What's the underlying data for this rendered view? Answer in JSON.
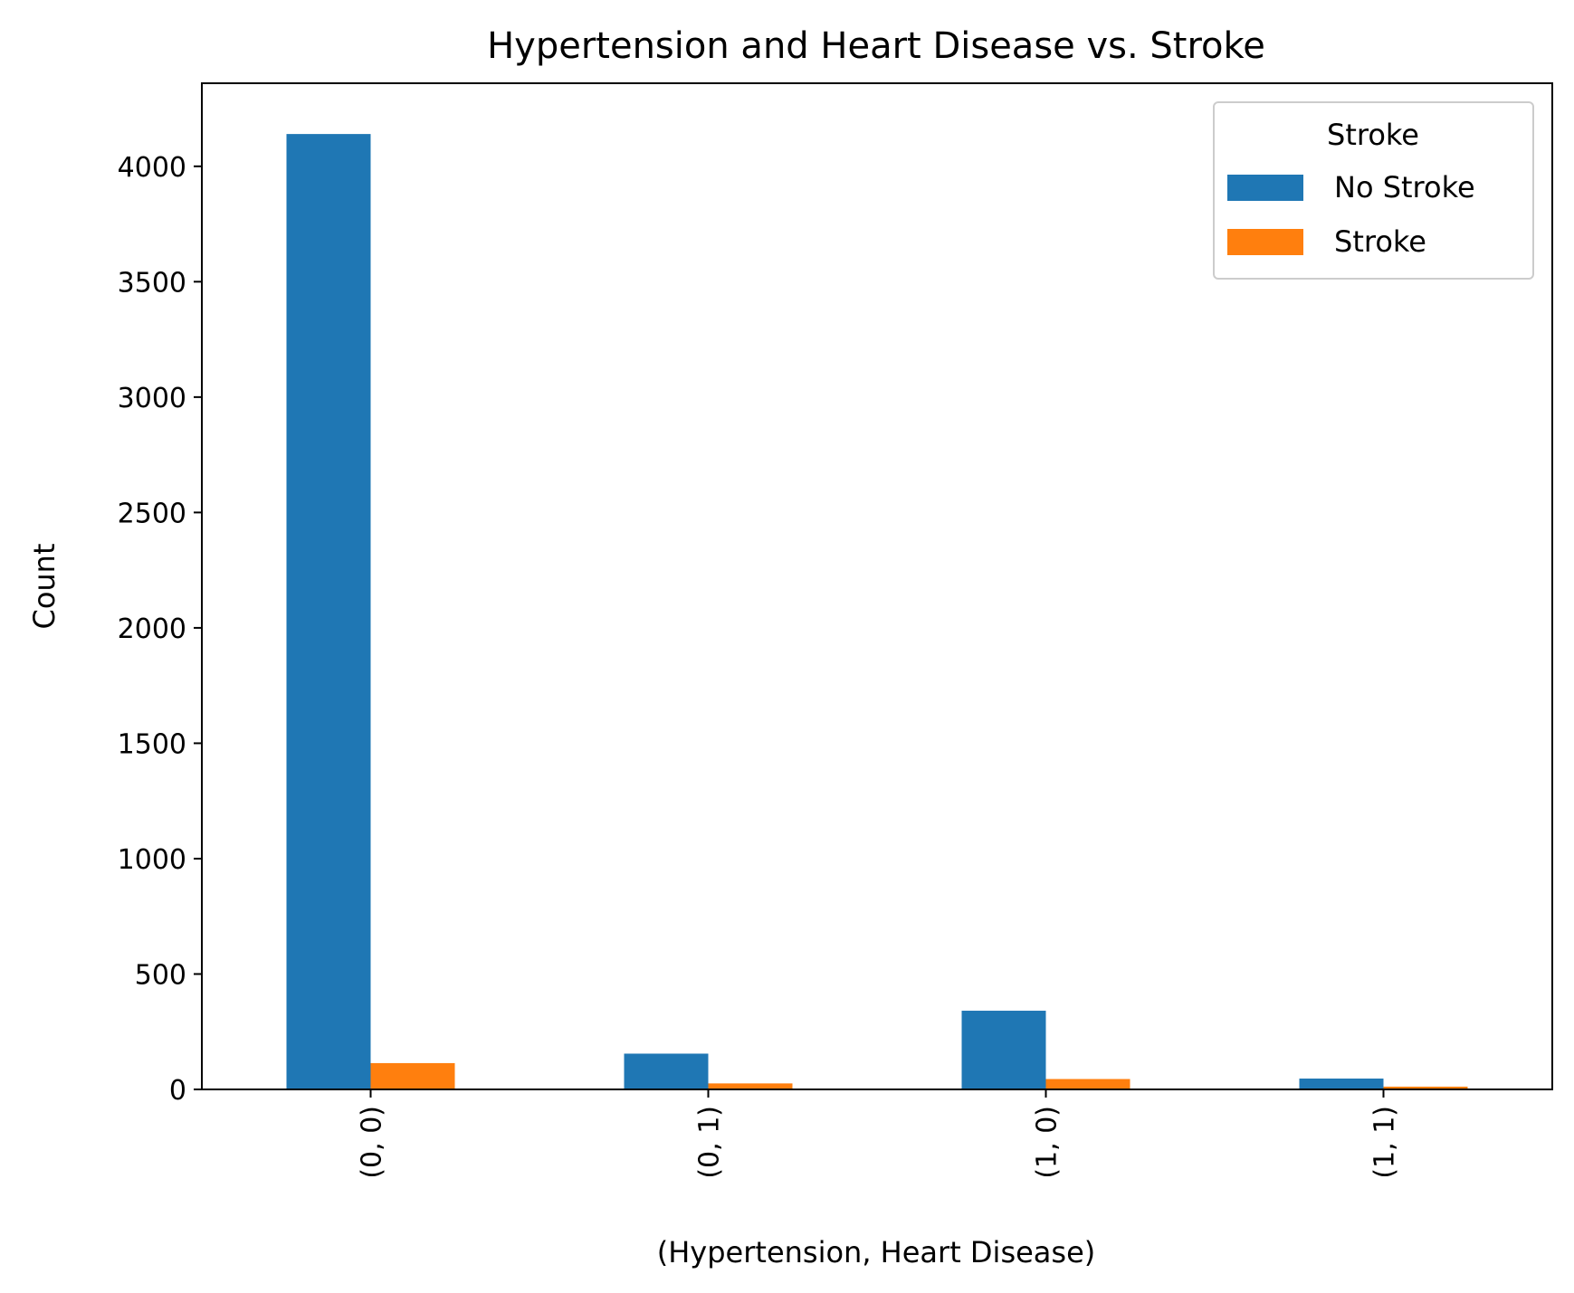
{
  "chart_data": {
    "type": "bar",
    "title": "Hypertension and Heart Disease vs. Stroke",
    "xlabel": "(Hypertension, Heart Disease)",
    "ylabel": "Count",
    "categories": [
      "(0, 0)",
      "(0, 1)",
      "(1, 0)",
      "(1, 1)"
    ],
    "series": [
      {
        "name": "No Stroke",
        "values": [
          4140,
          155,
          341,
          47
        ],
        "color": "#1f77b4"
      },
      {
        "name": "Stroke",
        "values": [
          114,
          26,
          45,
          12
        ],
        "color": "#ff7f0e"
      }
    ],
    "ylim": [
      0,
      4360
    ],
    "yticks": [
      0,
      500,
      1000,
      1500,
      2000,
      2500,
      3000,
      3500,
      4000
    ],
    "grid": false,
    "legend": {
      "title": "Stroke",
      "placement": "top-right"
    }
  }
}
